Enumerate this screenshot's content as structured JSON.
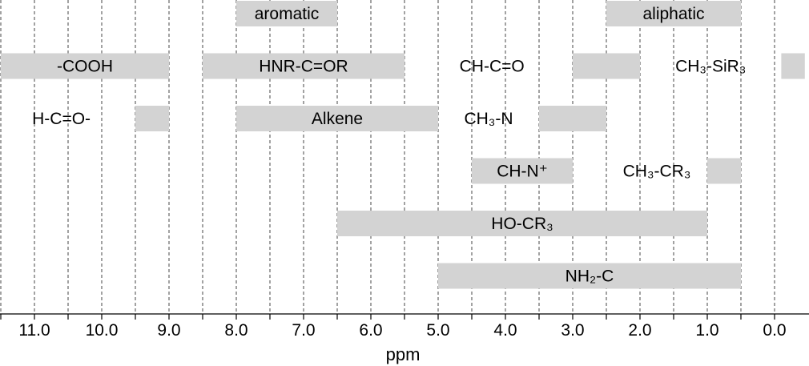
{
  "chart_data": {
    "type": "bar",
    "orientation": "horizontal-range",
    "xlabel": "ppm",
    "xlim": [
      11.5,
      -0.45
    ],
    "x_reversed": true,
    "grid": "vertical-dashed",
    "xticks": [
      {
        "value": 11.0,
        "label": "11.0"
      },
      {
        "value": 10.0,
        "label": "10.0"
      },
      {
        "value": 9.0,
        "label": "9.0"
      },
      {
        "value": 8.0,
        "label": "8.0"
      },
      {
        "value": 7.0,
        "label": "7.0"
      },
      {
        "value": 6.0,
        "label": "6.0"
      },
      {
        "value": 5.0,
        "label": "5.0"
      },
      {
        "value": 4.0,
        "label": "4.0"
      },
      {
        "value": 3.0,
        "label": "3.0"
      },
      {
        "value": 2.0,
        "label": "2.0"
      },
      {
        "value": 1.0,
        "label": "1.0"
      },
      {
        "value": 0.0,
        "label": "0.0"
      }
    ],
    "rows": [
      {
        "bands": [
          {
            "label": "aromatic",
            "from": 8.0,
            "to": 6.5,
            "label_at": 7.25
          },
          {
            "label": "aliphatic",
            "from": 2.5,
            "to": 0.5,
            "label_at": 1.5
          }
        ]
      },
      {
        "bands": [
          {
            "label": "-COOH",
            "from": 11.5,
            "to": 9.0,
            "label_at": 10.25
          },
          {
            "label": "HNR-C=OR",
            "from": 8.5,
            "to": 5.5,
            "label_at": 7.0
          },
          {
            "label": "CH-C=O",
            "from": 3.0,
            "to": 2.0,
            "label_at": 4.2
          },
          {
            "label": "CH₃-SiR₃",
            "from": -0.1,
            "to": -0.45,
            "label_at": 0.95
          }
        ]
      },
      {
        "bands": [
          {
            "label": "H-C=O-",
            "from": 9.5,
            "to": 9.0,
            "label_at": 10.6
          },
          {
            "label": "Alkene",
            "from": 8.0,
            "to": 5.0,
            "label_at": 6.5
          },
          {
            "label": "CH₃-N",
            "from": 3.5,
            "to": 2.5,
            "label_at": 4.25
          }
        ]
      },
      {
        "bands": [
          {
            "label": "CH-N⁺",
            "from": 4.5,
            "to": 3.0,
            "label_at": 3.75
          },
          {
            "label": "CH₃-CR₃",
            "from": 1.0,
            "to": 0.5,
            "label_at": 1.75
          }
        ]
      },
      {
        "bands": [
          {
            "label": "HO-CR₃",
            "from": 6.5,
            "to": 1.0,
            "label_at": 3.75
          }
        ]
      },
      {
        "bands": [
          {
            "label": "NH₂-C",
            "from": 5.0,
            "to": 0.5,
            "label_at": 2.75
          }
        ]
      }
    ]
  }
}
